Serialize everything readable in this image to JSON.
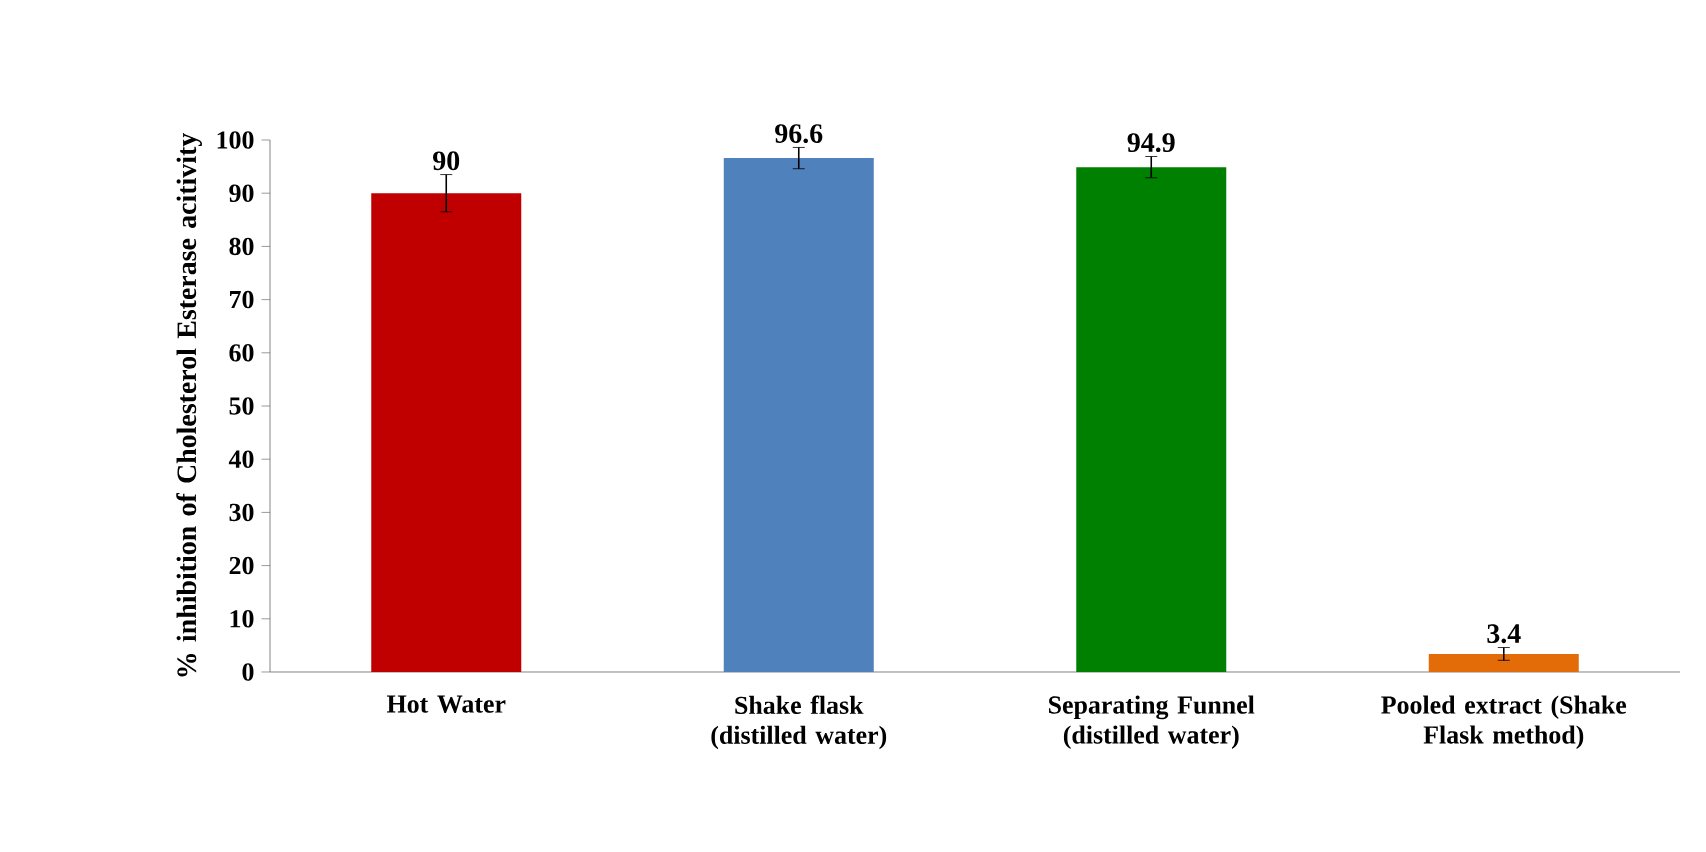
{
  "chart_data": {
    "type": "bar",
    "ylabel": "% inhibition  of Cholesterol Esterase acitivity",
    "categories": [
      "Hot Water",
      "Shake flask (distilled water)",
      "Separating Funnel (distilled water)",
      "Pooled extract (Shake Flask method)"
    ],
    "values": [
      90,
      96.6,
      94.9,
      3.4
    ],
    "colors": [
      "#c00000",
      "#4f81bd",
      "#008000",
      "#e36c09"
    ],
    "errors": [
      3.5,
      2,
      2,
      1.2
    ],
    "ylim": [
      0,
      100
    ],
    "yticks": [
      0,
      10,
      20,
      30,
      40,
      50,
      60,
      70,
      80,
      90,
      100
    ],
    "data_labels": true
  }
}
